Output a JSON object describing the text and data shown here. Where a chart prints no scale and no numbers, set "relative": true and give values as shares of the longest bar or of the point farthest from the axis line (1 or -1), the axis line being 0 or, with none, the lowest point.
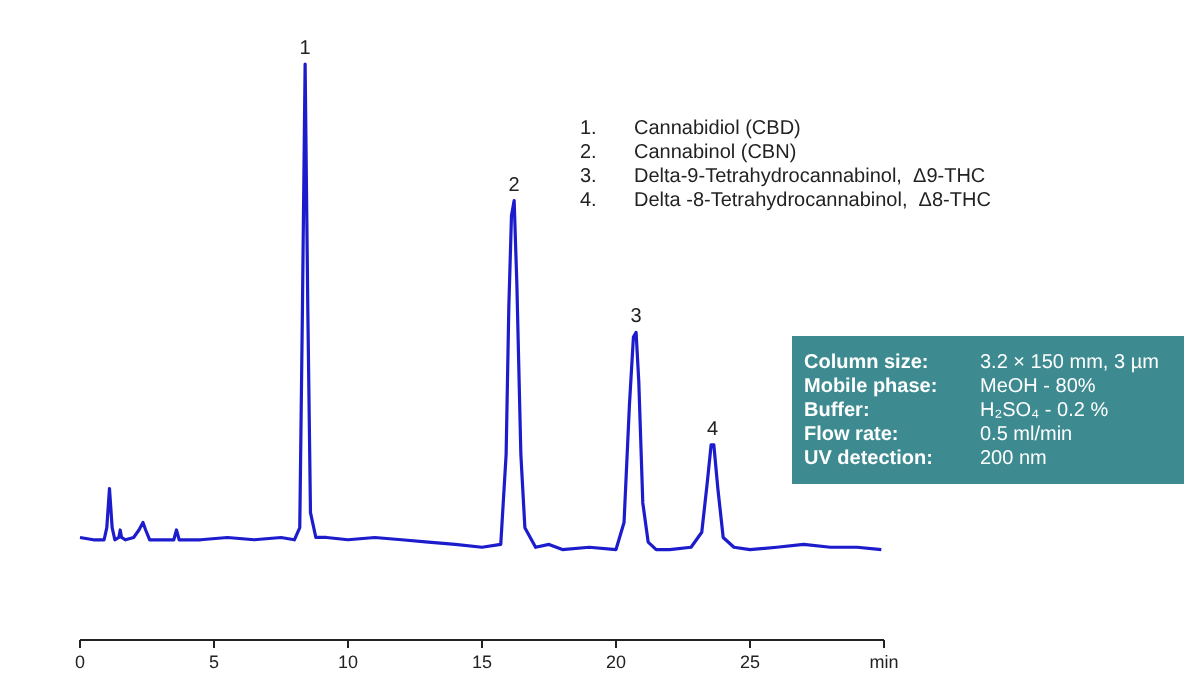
{
  "chart_data": {
    "type": "line",
    "relative": true,
    "x": [
      0,
      0.5,
      0.9,
      1.0,
      1.1,
      1.2,
      1.3,
      1.45,
      1.5,
      1.55,
      1.7,
      2.0,
      2.2,
      2.35,
      2.45,
      2.6,
      3.0,
      3.5,
      3.6,
      3.7,
      4.5,
      5.5,
      6.5,
      7.5,
      8.0,
      8.2,
      8.3,
      8.4,
      8.5,
      8.6,
      8.8,
      9.2,
      10,
      11,
      12,
      13,
      14,
      15,
      15.7,
      15.9,
      16.0,
      16.1,
      16.2,
      16.3,
      16.45,
      16.6,
      17.0,
      17.5,
      18,
      19,
      20,
      20.3,
      20.5,
      20.65,
      20.75,
      20.85,
      21.0,
      21.2,
      21.5,
      22,
      22.8,
      23.2,
      23.4,
      23.55,
      23.65,
      23.8,
      24.0,
      24.4,
      25,
      26,
      27,
      28,
      29,
      29.9
    ],
    "series": [
      {
        "color": "#1c1ccc",
        "values": [
          0.178,
          0.174,
          0.174,
          0.195,
          0.263,
          0.195,
          0.174,
          0.178,
          0.191,
          0.178,
          0.174,
          0.178,
          0.191,
          0.204,
          0.191,
          0.174,
          0.174,
          0.174,
          0.191,
          0.174,
          0.174,
          0.178,
          0.174,
          0.178,
          0.174,
          0.195,
          0.576,
          1,
          0.576,
          0.221,
          0.178,
          0.178,
          0.174,
          0.178,
          0.174,
          0.17,
          0.166,
          0.161,
          0.166,
          0.322,
          0.576,
          0.737,
          0.763,
          0.619,
          0.322,
          0.195,
          0.161,
          0.166,
          0.157,
          0.161,
          0.157,
          0.204,
          0.407,
          0.526,
          0.534,
          0.449,
          0.238,
          0.17,
          0.157,
          0.157,
          0.161,
          0.187,
          0.271,
          0.339,
          0.339,
          0.263,
          0.178,
          0.161,
          0.157,
          0.161,
          0.166,
          0.161,
          0.161,
          0.157
        ]
      }
    ],
    "xlim": [
      0,
      30
    ],
    "xticks": [
      0,
      5,
      10,
      15,
      20,
      25,
      {
        "value": 30,
        "label": "min"
      }
    ],
    "annotations": [
      {
        "text": "1",
        "x": 8.4,
        "y": 1.0
      },
      {
        "text": "2",
        "x": 16.2,
        "y": 0.763
      },
      {
        "text": "3",
        "x": 20.75,
        "y": 0.534
      },
      {
        "text": "4",
        "x": 23.6,
        "y": 0.339
      },
      "1.  Cannabidiol (CBD)",
      "2.  Cannabinol (CBN)",
      "3.  Delta-9-Tetrahydrocannabinol,  Δ9-THC",
      "4.  Delta -8-Tetrahydrocannabinol,  Δ8-THC",
      "Column size: 3.2 × 150 mm, 3 µm",
      "Mobile phase: MeOH - 80%",
      "Buffer: H₂SO₄  - 0.2 %",
      "Flow rate: 0.5 ml/min",
      "UV detection: 200 nm"
    ]
  }
}
